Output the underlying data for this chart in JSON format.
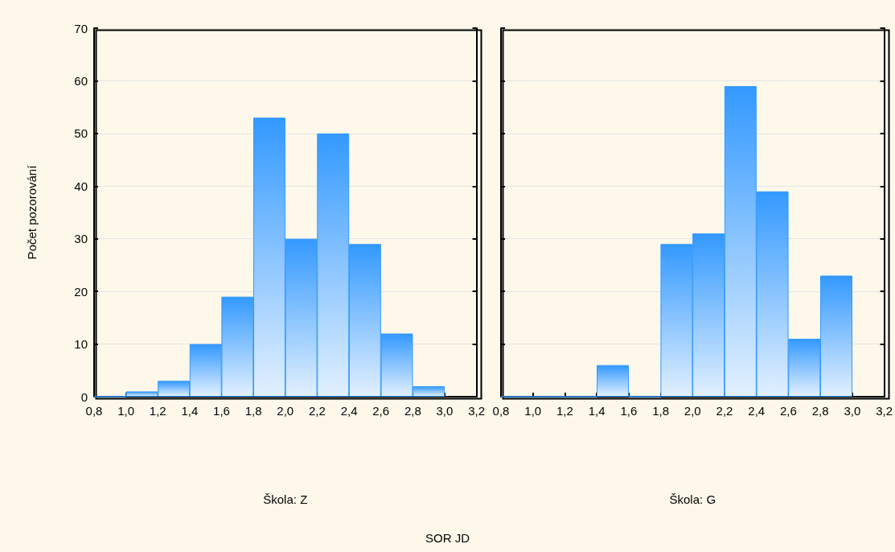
{
  "chart_data": [
    {
      "type": "histogram",
      "ylabel": "Počet pozorování",
      "xlabel": "Škola: Z",
      "annotations": [
        "SOR JD"
      ],
      "bins": [
        0.8,
        1.0,
        1.2,
        1.4,
        1.6,
        1.8,
        2.0,
        2.2,
        2.4,
        2.6,
        2.8,
        3.0
      ],
      "values": [
        0,
        1,
        3,
        10,
        19,
        53,
        30,
        50,
        29,
        12,
        2
      ],
      "color": "#3399ff",
      "xlim": [
        0.8,
        3.2
      ],
      "xticks": [
        {
          "value": 0.8,
          "label": "0,8"
        },
        {
          "value": 1.0,
          "label": "1,0"
        },
        {
          "value": 1.2,
          "label": "1,2"
        },
        {
          "value": 1.4,
          "label": "1,4"
        },
        {
          "value": 1.6,
          "label": "1,6"
        },
        {
          "value": 1.8,
          "label": "1,8"
        },
        {
          "value": 2.0,
          "label": "2,0"
        },
        {
          "value": 2.2,
          "label": "2,2"
        },
        {
          "value": 2.4,
          "label": "2,4"
        },
        {
          "value": 2.6,
          "label": "2,6"
        },
        {
          "value": 2.8,
          "label": "2,8"
        },
        {
          "value": 3.0,
          "label": "3,0"
        },
        {
          "value": 3.2,
          "label": "3,2"
        }
      ],
      "ylim": [
        0,
        70
      ],
      "yticks": [
        0,
        10,
        20,
        30,
        40,
        50,
        60,
        70
      ],
      "grid": "y"
    },
    {
      "type": "histogram",
      "xlabel": "Škola: G",
      "bins": [
        0.8,
        1.0,
        1.2,
        1.4,
        1.6,
        1.8,
        2.0,
        2.2,
        2.4,
        2.6,
        2.8,
        3.0
      ],
      "values": [
        0,
        0,
        0,
        6,
        0,
        29,
        31,
        59,
        39,
        11,
        23
      ],
      "color": "#3399ff",
      "xlim": [
        0.8,
        3.2
      ],
      "xticks": [
        {
          "value": 0.8,
          "label": "0,8"
        },
        {
          "value": 1.0,
          "label": "1,0"
        },
        {
          "value": 1.2,
          "label": "1,2"
        },
        {
          "value": 1.4,
          "label": "1,4"
        },
        {
          "value": 1.6,
          "label": "1,6"
        },
        {
          "value": 1.8,
          "label": "1,8"
        },
        {
          "value": 2.0,
          "label": "2,0"
        },
        {
          "value": 2.2,
          "label": "2,2"
        },
        {
          "value": 2.4,
          "label": "2,4"
        },
        {
          "value": 2.6,
          "label": "2,6"
        },
        {
          "value": 2.8,
          "label": "2,8"
        },
        {
          "value": 3.0,
          "label": "3,0"
        },
        {
          "value": 3.2,
          "label": "3,2"
        }
      ],
      "ylim": [
        0,
        70
      ],
      "yticks": [
        0,
        10,
        20,
        30,
        40,
        50,
        60,
        70
      ],
      "grid": "y",
      "tick_labels": "x"
    }
  ]
}
